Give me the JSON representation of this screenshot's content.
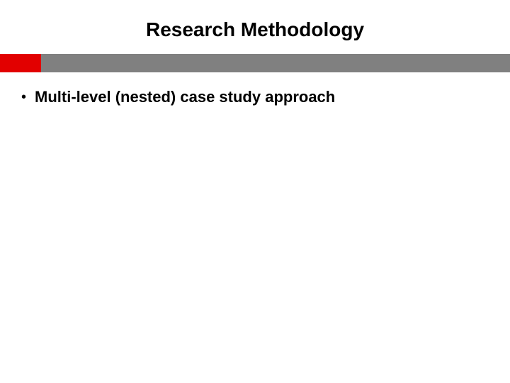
{
  "slide": {
    "title": "Research Methodology",
    "title_color": "#000000",
    "title_fontsize": 28,
    "title_fontweight": "bold",
    "background_color": "#ffffff",
    "divider": {
      "gray_bar_color": "#808080",
      "gray_bar_height": 26,
      "red_block_color": "#e20000",
      "red_block_width": 58
    },
    "bullets": [
      {
        "text": "Multi-level (nested) case study approach",
        "fontsize": 22,
        "fontweight": "bold",
        "color": "#000000"
      }
    ]
  }
}
